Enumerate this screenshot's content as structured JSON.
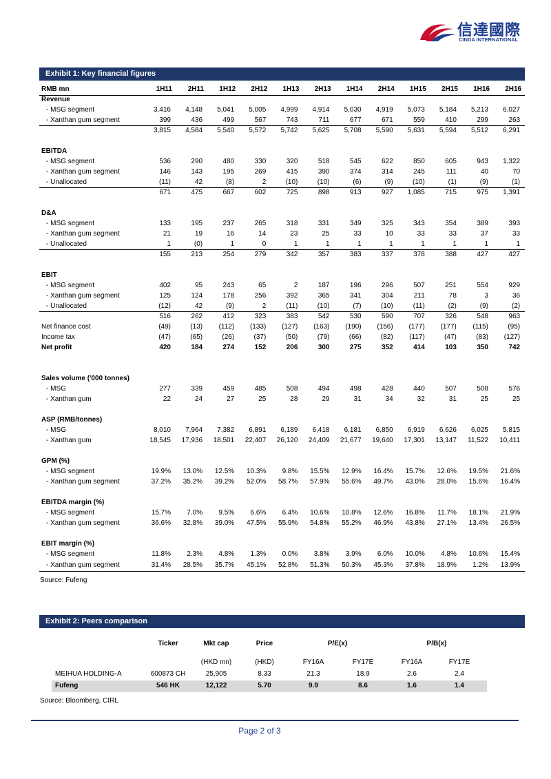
{
  "header": {
    "logo_text": "信達國際",
    "logo_subtext": "CINDA INTERNATIONAL"
  },
  "exhibit1": {
    "title": "Exhibit 1: Key financial figures",
    "columns": [
      "RMB mn",
      "1H11",
      "2H11",
      "1H12",
      "2H12",
      "1H13",
      "2H13",
      "1H14",
      "2H14",
      "1H15",
      "2H15",
      "1H16",
      "2H16"
    ],
    "blocks": [
      {
        "heading": "Revenue",
        "rows": [
          {
            "label": "- MSG segment",
            "values": [
              "3,416",
              "4,148",
              "5,041",
              "5,005",
              "4,999",
              "4,914",
              "5,030",
              "4,919",
              "5,073",
              "5,184",
              "5,213",
              "6,027"
            ]
          },
          {
            "label": "- Xanthan gum segment",
            "values": [
              "399",
              "436",
              "499",
              "567",
              "743",
              "711",
              "677",
              "671",
              "559",
              "410",
              "299",
              "263"
            ]
          },
          {
            "values": [
              "3,815",
              "4,584",
              "5,540",
              "5,572",
              "5,742",
              "5,625",
              "5,708",
              "5,590",
              "5,631",
              "5,594",
              "5,512",
              "6,291"
            ]
          }
        ]
      },
      {
        "heading": "EBITDA",
        "rows": [
          {
            "label": "- MSG segment",
            "values": [
              "536",
              "290",
              "480",
              "330",
              "320",
              "518",
              "545",
              "622",
              "850",
              "605",
              "943",
              "1,322"
            ]
          },
          {
            "label": "- Xanthan gum segment",
            "values": [
              "146",
              "143",
              "195",
              "269",
              "415",
              "390",
              "374",
              "314",
              "245",
              "111",
              "40",
              "70"
            ]
          },
          {
            "label": "- Unallocated",
            "values": [
              "(11)",
              "42",
              "(8)",
              "2",
              "(10)",
              "(10)",
              "(6)",
              "(9)",
              "(10)",
              "(1)",
              "(9)",
              "(1)"
            ]
          },
          {
            "values": [
              "671",
              "475",
              "667",
              "602",
              "725",
              "898",
              "913",
              "927",
              "1,085",
              "715",
              "975",
              "1,391"
            ]
          }
        ]
      },
      {
        "heading": "D&A",
        "rows": [
          {
            "label": "- MSG segment",
            "values": [
              "133",
              "195",
              "237",
              "265",
              "318",
              "331",
              "349",
              "325",
              "343",
              "354",
              "389",
              "393"
            ]
          },
          {
            "label": "- Xanthan gum segment",
            "values": [
              "21",
              "19",
              "16",
              "14",
              "23",
              "25",
              "33",
              "10",
              "33",
              "33",
              "37",
              "33"
            ]
          },
          {
            "label": "- Unallocated",
            "values": [
              "1",
              "(0)",
              "1",
              "0",
              "1",
              "1",
              "1",
              "1",
              "1",
              "1",
              "1",
              "1"
            ]
          },
          {
            "values": [
              "155",
              "213",
              "254",
              "279",
              "342",
              "357",
              "383",
              "337",
              "378",
              "388",
              "427",
              "427"
            ]
          }
        ]
      },
      {
        "heading": "EBIT",
        "rows": [
          {
            "label": "- MSG segment",
            "values": [
              "402",
              "95",
              "243",
              "65",
              "2",
              "187",
              "196",
              "296",
              "507",
              "251",
              "554",
              "929"
            ]
          },
          {
            "label": "- Xanthan gum segment",
            "values": [
              "125",
              "124",
              "178",
              "256",
              "392",
              "365",
              "341",
              "304",
              "211",
              "78",
              "3",
              "36"
            ]
          },
          {
            "label": "- Unallocated",
            "values": [
              "(12)",
              "42",
              "(9)",
              "2",
              "(11)",
              "(10)",
              "(7)",
              "(10)",
              "(11)",
              "(2)",
              "(9)",
              "(2)"
            ]
          },
          {
            "values": [
              "516",
              "262",
              "412",
              "323",
              "383",
              "542",
              "530",
              "590",
              "707",
              "326",
              "548",
              "963"
            ]
          },
          {
            "label": "Net finance cost",
            "values": [
              "(49)",
              "(13)",
              "(112)",
              "(133)",
              "(127)",
              "(163)",
              "(190)",
              "(156)",
              "(177)",
              "(177)",
              "(115)",
              "(95)"
            ]
          },
          {
            "label": "Income tax",
            "values": [
              "(47)",
              "(65)",
              "(26)",
              "(37)",
              "(50)",
              "(79)",
              "(66)",
              "(82)",
              "(117)",
              "(47)",
              "(83)",
              "(127)"
            ]
          },
          {
            "label": "Net profit",
            "values": [
              "420",
              "184",
              "274",
              "152",
              "206",
              "300",
              "275",
              "352",
              "414",
              "103",
              "350",
              "742"
            ]
          }
        ]
      },
      {
        "heading": "Sales volume ('000 tonnes)",
        "rows": [
          {
            "label": "- MSG",
            "values": [
              "277",
              "339",
              "459",
              "485",
              "508",
              "494",
              "498",
              "428",
              "440",
              "507",
              "508",
              "576"
            ]
          },
          {
            "label": "- Xanthan gum",
            "values": [
              "22",
              "24",
              "27",
              "25",
              "28",
              "29",
              "31",
              "34",
              "32",
              "31",
              "25",
              "25"
            ]
          }
        ]
      },
      {
        "heading": "ASP (RMB/tonnes)",
        "rows": [
          {
            "label": "- MSG",
            "values": [
              "8,010",
              "7,964",
              "7,382",
              "6,891",
              "6,189",
              "6,418",
              "6,181",
              "6,850",
              "6,919",
              "6,626",
              "6,025",
              "5,815"
            ]
          },
          {
            "label": "- Xanthan gum",
            "values": [
              "18,545",
              "17,936",
              "18,501",
              "22,407",
              "26,120",
              "24,409",
              "21,677",
              "19,640",
              "17,301",
              "13,147",
              "11,522",
              "10,411"
            ]
          }
        ]
      },
      {
        "heading": "GPM (%)",
        "rows": [
          {
            "label": "- MSG segment",
            "values": [
              "19.9%",
              "13.0%",
              "12.5%",
              "10.3%",
              "9.8%",
              "15.5%",
              "12.9%",
              "16.4%",
              "15.7%",
              "12.6%",
              "19.5%",
              "21.6%"
            ]
          },
          {
            "label": "- Xanthan gum segment",
            "values": [
              "37.2%",
              "35.2%",
              "39.2%",
              "52.0%",
              "58.7%",
              "57.9%",
              "55.6%",
              "49.7%",
              "43.0%",
              "28.0%",
              "15.6%",
              "16.4%"
            ]
          }
        ]
      },
      {
        "heading": "EBITDA margin (%)",
        "rows": [
          {
            "label": "- MSG segment",
            "values": [
              "15.7%",
              "7.0%",
              "9.5%",
              "6.6%",
              "6.4%",
              "10.6%",
              "10.8%",
              "12.6%",
              "16.8%",
              "11.7%",
              "18.1%",
              "21.9%"
            ]
          },
          {
            "label": "- Xanthan gum segment",
            "values": [
              "36.6%",
              "32.8%",
              "39.0%",
              "47.5%",
              "55.9%",
              "54.8%",
              "55.2%",
              "46.9%",
              "43.8%",
              "27.1%",
              "13.4%",
              "26.5%"
            ]
          }
        ]
      },
      {
        "heading": "EBIT margin (%)",
        "rows": [
          {
            "label": "- MSG segment",
            "values": [
              "11.8%",
              "2.3%",
              "4.8%",
              "1.3%",
              "0.0%",
              "3.8%",
              "3.9%",
              "6.0%",
              "10.0%",
              "4.8%",
              "10.6%",
              "15.4%"
            ]
          },
          {
            "label": "- Xanthan gum segment",
            "values": [
              "31.4%",
              "28.5%",
              "35.7%",
              "45.1%",
              "52.8%",
              "51.3%",
              "50.3%",
              "45.3%",
              "37.8%",
              "18.9%",
              "1.2%",
              "13.9%"
            ]
          }
        ]
      }
    ],
    "source": "Source: Fufeng"
  },
  "exhibit2": {
    "title": "Exhibit 2: Peers comparison",
    "headers": [
      "Ticker",
      "Mkt cap",
      "Price",
      "P/E(x)",
      "P/B(x)"
    ],
    "subheaders": [
      "(HKD mn)",
      "(HKD)",
      "FY16A",
      "FY17E",
      "FY16A",
      "FY17E"
    ],
    "rows": [
      [
        "MEIHUA HOLDING-A",
        "600873 CH",
        "25,905",
        "8.33",
        "21.3",
        "18.9",
        "2.6",
        "2.4"
      ],
      [
        "Fufeng",
        "546 HK",
        "12,122",
        "5.70",
        "9.9",
        "8.6",
        "1.6",
        "1.4"
      ]
    ],
    "source": "Source: Bloomberg, CIRL"
  },
  "footer": {
    "page": "Page 2 of 3"
  }
}
